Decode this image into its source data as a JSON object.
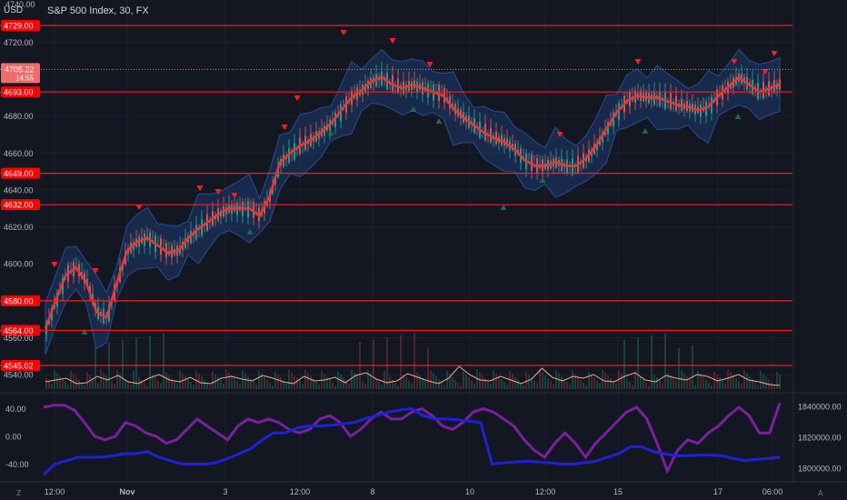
{
  "header": {
    "currency": "USD",
    "title": "S&P 500 Index, 30, FX",
    "top_tick": "4740.00"
  },
  "price_axis": {
    "ticks": [
      "4720.00",
      "4680.00",
      "4660.00",
      "4640.00",
      "4620.00",
      "4600.00",
      "4560.00",
      "4540.00"
    ],
    "tick_values": [
      4720,
      4680,
      4660,
      4640,
      4620,
      4600,
      4560,
      4540
    ],
    "current_price": "4705.22",
    "countdown": "14:55",
    "current_price_value": 4705.22
  },
  "levels": [
    {
      "label": "4729.00",
      "value": 4729
    },
    {
      "label": "4693.00",
      "value": 4693
    },
    {
      "label": "4649.00",
      "value": 4649
    },
    {
      "label": "4632.00",
      "value": 4632
    },
    {
      "label": "4580.00",
      "value": 4580
    },
    {
      "label": "4564.00",
      "value": 4564
    },
    {
      "label": "4545.02",
      "value": 4545.02
    }
  ],
  "oscillator_axis": {
    "left_ticks": [
      "40.00",
      "0.00",
      "-40.00"
    ],
    "left_values": [
      40,
      0,
      -40
    ],
    "right_ticks": [
      "1840000.00",
      "1820000.00",
      "1800000.00"
    ],
    "right_values": [
      1840000,
      1820000,
      1800000
    ]
  },
  "time_axis": {
    "labels": [
      "12:00",
      "Nov",
      "3",
      "12:00",
      "8",
      "10",
      "12:00",
      "15",
      "17",
      "06:00"
    ],
    "bold": [
      false,
      true,
      false,
      false,
      false,
      false,
      false,
      false,
      false,
      false
    ]
  },
  "footer": {
    "left_button": "Z",
    "right_button": "A"
  },
  "colors": {
    "background": "#131722",
    "level_line": "#ff1a1a",
    "level_label_bg": "#ff0000",
    "ma_line": "#e53935",
    "band_fill": "#1e3a6e",
    "sell_marker": "#ff1f1f",
    "buy_marker": "#1f6b4f",
    "oscillator_purple": "#7b1fa2",
    "oscillator_blue": "#1e22d6",
    "volume_line": "#f2a98a"
  },
  "chart_data": {
    "type": "line",
    "series": [
      {
        "values": [
          4565,
          4580,
          4594,
          4598,
          4590,
          4574,
          4571,
          4590,
          4607,
          4612,
          4614,
          4610,
          4606,
          4607,
          4614,
          4619,
          4623,
          4627,
          4630,
          4630,
          4630,
          4626,
          4637,
          4655,
          4660,
          4664,
          4667,
          4671,
          4676,
          4683,
          4690,
          4694,
          4699,
          4701,
          4697,
          4695,
          4697,
          4695,
          4693,
          4691,
          4684,
          4679,
          4675,
          4671,
          4668,
          4666,
          4662,
          4656,
          4653,
          4653,
          4655,
          4653,
          4653,
          4657,
          4664,
          4673,
          4682,
          4688,
          4691,
          4690,
          4690,
          4688,
          4686,
          4685,
          4683,
          4685,
          4691,
          4696,
          4701,
          4697,
          4693,
          4695,
          4697
        ]
      }
    ],
    "oscillator": {
      "purple": [
        42,
        45,
        45,
        38,
        20,
        0,
        -5,
        0,
        20,
        15,
        5,
        0,
        -10,
        -5,
        10,
        25,
        15,
        5,
        -5,
        15,
        25,
        20,
        25,
        20,
        10,
        5,
        10,
        25,
        30,
        20,
        0,
        10,
        25,
        35,
        25,
        25,
        35,
        40,
        30,
        15,
        10,
        20,
        35,
        40,
        35,
        25,
        15,
        -5,
        -20,
        -30,
        -10,
        5,
        -10,
        -30,
        -10,
        5,
        20,
        35,
        42,
        25,
        -10,
        -50,
        -20,
        -5,
        -10,
        5,
        15,
        30,
        42,
        30,
        5,
        5,
        48
      ],
      "blue": [
        -55,
        -40,
        -35,
        -30,
        -30,
        -30,
        -28,
        -25,
        -25,
        -22,
        -30,
        -35,
        -40,
        -40,
        -40,
        -38,
        -32,
        -25,
        -18,
        -5,
        5,
        5,
        12,
        15,
        15,
        16,
        18,
        20,
        26,
        30,
        35,
        38,
        40,
        30,
        25,
        25,
        24,
        22,
        20,
        -40,
        -38,
        -37,
        -36,
        -37,
        -38,
        -40,
        -40,
        -38,
        -36,
        -30,
        -25,
        -15,
        -15,
        -22,
        -25,
        -28,
        -28,
        -27,
        -27,
        -28,
        -32,
        -35,
        -33,
        -32,
        -30
      ]
    },
    "volume_line": [
      8,
      10,
      12,
      6,
      7,
      14,
      10,
      15,
      8,
      6,
      12,
      16,
      10,
      8,
      13,
      7,
      6,
      12,
      14,
      11,
      9,
      15,
      12,
      8,
      6,
      14,
      9,
      10,
      13,
      7,
      15,
      18,
      11,
      7,
      9,
      17,
      13,
      9,
      6,
      12,
      25,
      16,
      10,
      9,
      14,
      10,
      6,
      11,
      23,
      13,
      9,
      14,
      12,
      16,
      9,
      8,
      14,
      18,
      10,
      8,
      15,
      12,
      10,
      16,
      14,
      9,
      12,
      16,
      10,
      8,
      5,
      4
    ]
  }
}
